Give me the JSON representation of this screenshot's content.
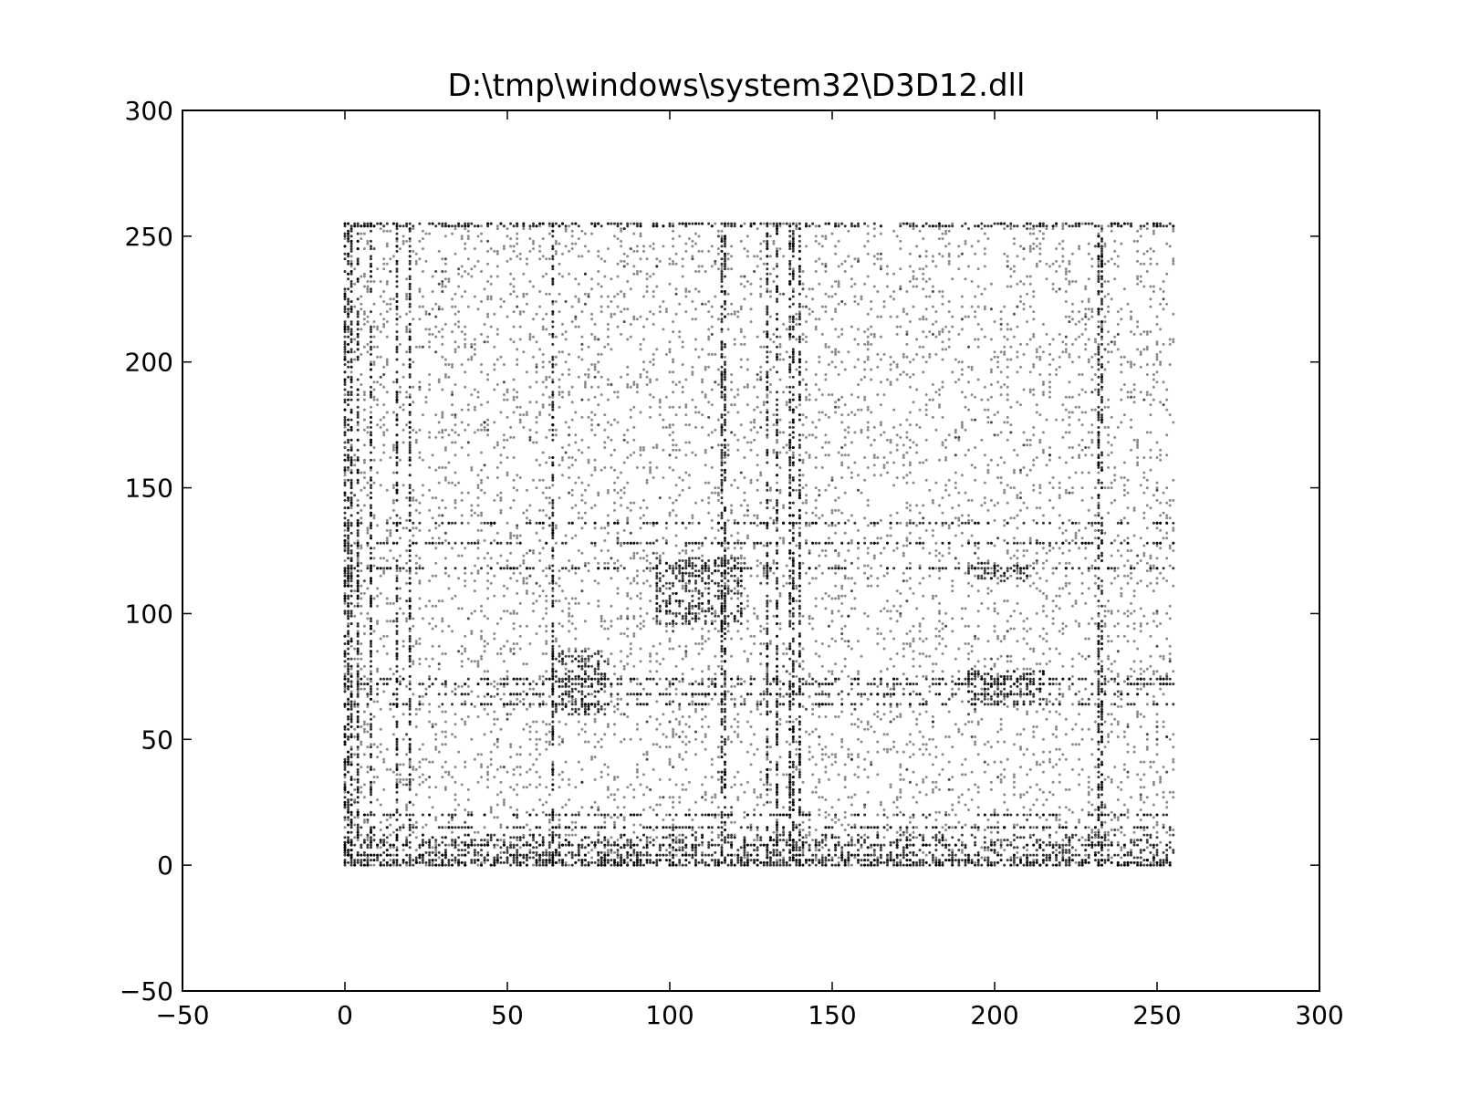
{
  "chart_data": {
    "type": "scatter",
    "title": "D:\\tmp\\windows\\system32\\D3D12.dll",
    "xlabel": "",
    "ylabel": "",
    "xlim": [
      -50,
      300
    ],
    "ylim": [
      -50,
      300
    ],
    "x_ticks": [
      -50,
      0,
      50,
      100,
      150,
      200,
      250,
      300
    ],
    "y_ticks": [
      -50,
      0,
      50,
      100,
      150,
      200,
      250,
      300
    ],
    "x_tick_labels": [
      "−50",
      "0",
      "50",
      "100",
      "150",
      "200",
      "250",
      "300"
    ],
    "y_tick_labels": [
      "−50",
      "0",
      "50",
      "100",
      "150",
      "200",
      "250",
      "300"
    ],
    "grid": false,
    "legend": "none",
    "marker_color": "#000000",
    "description_of_points": "byte-pair scatter (digraph plot) of consecutive byte values, x and y each in range 0-255",
    "dense_lines": {
      "vertical_x": [
        0,
        1,
        2,
        4,
        8,
        16,
        20,
        64,
        116,
        117,
        130,
        133,
        137,
        138,
        140,
        232,
        233
      ],
      "horizontal_y": [
        0,
        1,
        2,
        4,
        8,
        15,
        20,
        64,
        68,
        72,
        74,
        118,
        128,
        136,
        254,
        255
      ]
    },
    "dense_blocks": [
      {
        "x": [
          96,
          122
        ],
        "y": [
          96,
          122
        ]
      },
      {
        "x": [
          64,
          80
        ],
        "y": [
          60,
          85
        ]
      },
      {
        "x": [
          192,
          215
        ],
        "y": [
          64,
          78
        ]
      },
      {
        "x": [
          192,
          210
        ],
        "y": [
          113,
          120
        ]
      },
      {
        "x": [
          0,
          255
        ],
        "y": [
          0,
          12
        ]
      }
    ]
  }
}
